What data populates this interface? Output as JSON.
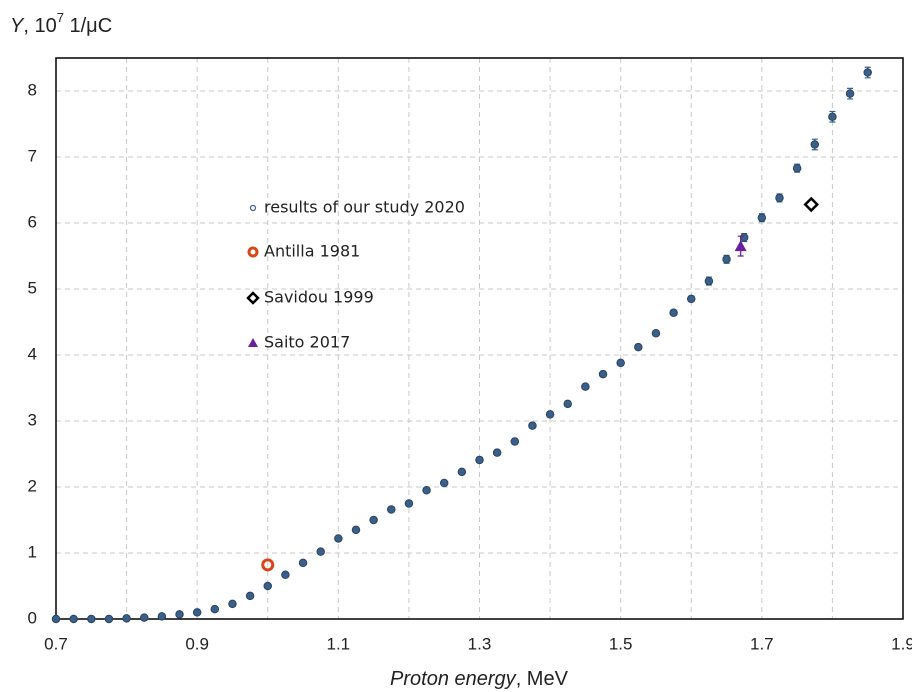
{
  "chart_data": {
    "type": "scatter",
    "ylabel": "Y",
    "ylabel_base": ", 10",
    "ylabel_exponent": "7",
    "ylabel_unit": " 1/μC",
    "xlabel": "Proton energy",
    "xlabel_unit": ", MeV",
    "xlim": [
      0.7,
      1.9
    ],
    "xticks": [
      0.7,
      0.9,
      1.1,
      1.3,
      1.5,
      1.7,
      1.9
    ],
    "x_minor_ticks": [
      0.8,
      1.0,
      1.2,
      1.4,
      1.6,
      1.8
    ],
    "ylim": [
      0,
      8.5
    ],
    "yticks": [
      0,
      1,
      2,
      3,
      4,
      5,
      6,
      7,
      8
    ],
    "grid": true,
    "series": [
      {
        "name": "results of our study 2020",
        "color": "#3a5f88",
        "marker": "circle",
        "x": [
          0.7,
          0.725,
          0.75,
          0.775,
          0.8,
          0.825,
          0.85,
          0.875,
          0.9,
          0.925,
          0.95,
          0.975,
          1.0,
          1.025,
          1.05,
          1.075,
          1.1,
          1.125,
          1.15,
          1.175,
          1.2,
          1.225,
          1.25,
          1.275,
          1.3,
          1.325,
          1.35,
          1.375,
          1.4,
          1.425,
          1.45,
          1.475,
          1.5,
          1.525,
          1.55,
          1.575,
          1.6,
          1.625,
          1.65,
          1.675,
          1.7,
          1.725,
          1.75,
          1.775,
          1.8,
          1.825,
          1.85
        ],
        "values": [
          0,
          0,
          0,
          0,
          0.01,
          0.02,
          0.04,
          0.07,
          0.1,
          0.15,
          0.23,
          0.35,
          0.5,
          0.67,
          0.85,
          1.02,
          1.22,
          1.35,
          1.5,
          1.66,
          1.75,
          1.95,
          2.06,
          2.23,
          2.41,
          2.52,
          2.69,
          2.93,
          3.1,
          3.26,
          3.52,
          3.71,
          3.88,
          4.12,
          4.33,
          4.64,
          4.85,
          5.12,
          5.45,
          5.78,
          6.08,
          6.38,
          6.83,
          7.19,
          7.61,
          7.96,
          8.28
        ],
        "errors": [
          0.02,
          0.02,
          0.02,
          0.02,
          0.02,
          0.02,
          0.02,
          0.02,
          0.02,
          0.02,
          0.02,
          0.02,
          0.02,
          0.02,
          0.02,
          0.02,
          0.02,
          0.02,
          0.02,
          0.02,
          0.02,
          0.02,
          0.02,
          0.02,
          0.04,
          0.04,
          0.04,
          0.04,
          0.04,
          0.04,
          0.04,
          0.04,
          0.04,
          0.04,
          0.04,
          0.04,
          0.04,
          0.06,
          0.06,
          0.06,
          0.06,
          0.06,
          0.06,
          0.08,
          0.08,
          0.08,
          0.08
        ]
      },
      {
        "name": "Antilla 1981",
        "color": "#d9461a",
        "marker": "open-circle",
        "x": [
          1.0
        ],
        "values": [
          0.82
        ]
      },
      {
        "name": "Savidou 1999",
        "color": "#000000",
        "marker": "open-diamond",
        "x": [
          1.77
        ],
        "values": [
          6.28
        ]
      },
      {
        "name": "Saito 2017",
        "color": "#6a1fa0",
        "marker": "triangle",
        "x": [
          1.67
        ],
        "values": [
          5.65
        ],
        "errors": [
          0.15
        ]
      }
    ]
  }
}
